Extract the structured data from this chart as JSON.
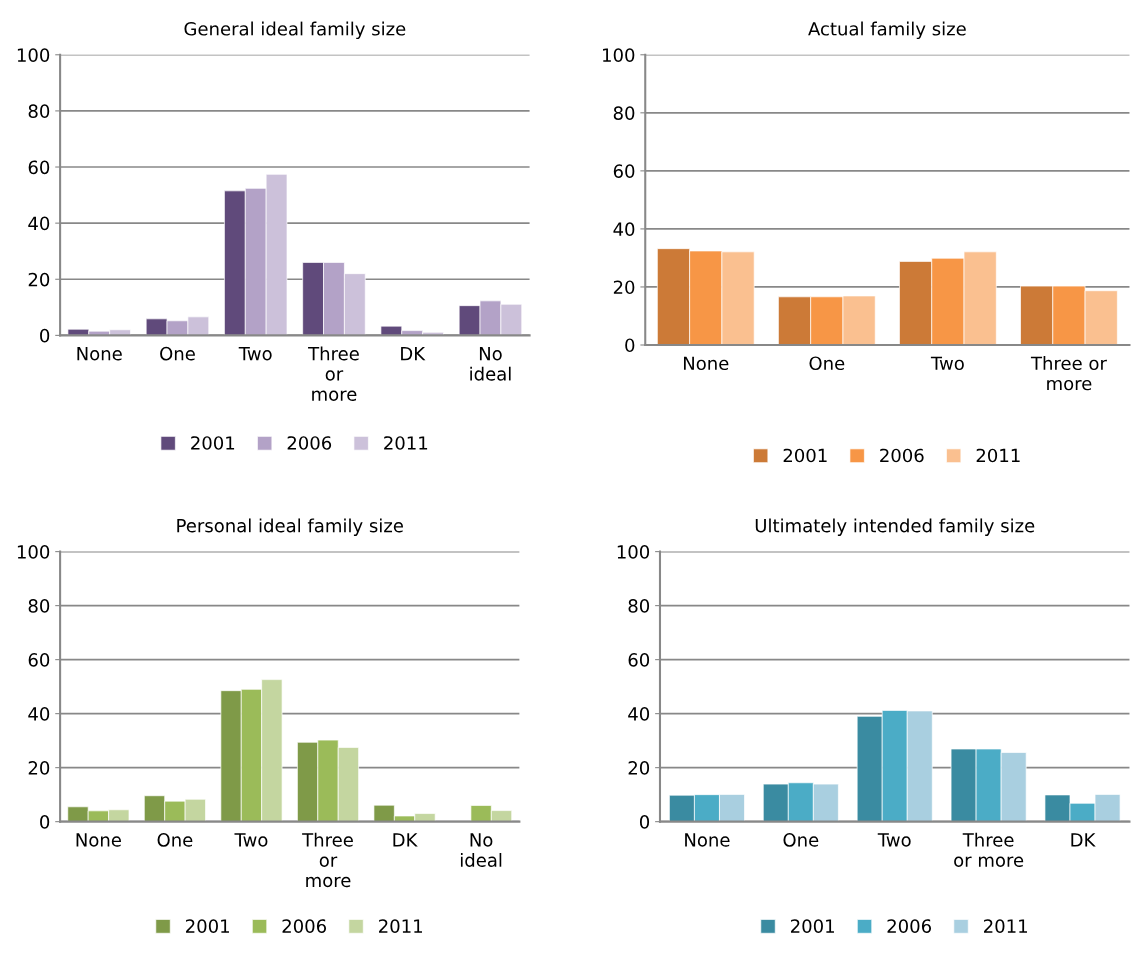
{
  "chart_data": [
    {
      "type": "bar",
      "title": "General ideal family size",
      "categories": [
        "None",
        "One",
        "Two",
        "Three\nor\nmore",
        "DK",
        "No\nideal"
      ],
      "ylim": [
        0,
        100
      ],
      "yticks": [
        0,
        20,
        40,
        60,
        80,
        100
      ],
      "grid": "y",
      "legend": "bottom",
      "series": [
        {
          "name": "2001",
          "color": "#604a7b",
          "values": [
            2.2,
            5.9,
            51.5,
            26,
            3.3,
            10.6
          ]
        },
        {
          "name": "2006",
          "color": "#b3a2c7",
          "values": [
            1.5,
            5.2,
            52.4,
            26,
            1.7,
            12.3
          ]
        },
        {
          "name": "2011",
          "color": "#ccc1da",
          "values": [
            2.0,
            6.6,
            57.4,
            22,
            1.1,
            11.1
          ]
        }
      ]
    },
    {
      "type": "bar",
      "title": "Actual family size",
      "categories": [
        "None",
        "One",
        "Two",
        "Three or\nmore"
      ],
      "ylim": [
        0,
        100
      ],
      "yticks": [
        0,
        20,
        40,
        60,
        80,
        100
      ],
      "grid": "y",
      "legend": "bottom",
      "series": [
        {
          "name": "2001",
          "color": "#cc7a37",
          "values": [
            33.2,
            16.6,
            28.8,
            20.3
          ]
        },
        {
          "name": "2006",
          "color": "#f79646",
          "values": [
            32.4,
            16.6,
            29.9,
            20.3
          ]
        },
        {
          "name": "2011",
          "color": "#fac090",
          "values": [
            32.1,
            16.9,
            32.1,
            18.7
          ]
        }
      ]
    },
    {
      "type": "bar",
      "title": "Personal ideal family size",
      "categories": [
        "None",
        "One",
        "Two",
        "Three\nor\nmore",
        "DK",
        "No\nideal"
      ],
      "ylim": [
        0,
        100
      ],
      "yticks": [
        0,
        20,
        40,
        60,
        80,
        100
      ],
      "grid": "y",
      "legend": "bottom",
      "series": [
        {
          "name": "2001",
          "color": "#7f9a48",
          "values": [
            5.5,
            9.6,
            48.5,
            29.4,
            6.1,
            null
          ]
        },
        {
          "name": "2006",
          "color": "#9bbb59",
          "values": [
            4.0,
            7.6,
            49.0,
            30.2,
            2.1,
            6.0
          ]
        },
        {
          "name": "2011",
          "color": "#c4d6a0",
          "values": [
            4.4,
            8.3,
            52.6,
            27.5,
            3.0,
            4.1
          ]
        }
      ]
    },
    {
      "type": "bar",
      "title": "Ultimately intended family size",
      "categories": [
        "None",
        "One",
        "Two",
        "Three\nor more",
        "DK"
      ],
      "ylim": [
        0,
        100
      ],
      "yticks": [
        0,
        20,
        40,
        60,
        80,
        100
      ],
      "grid": "y",
      "legend": "bottom",
      "series": [
        {
          "name": "2001",
          "color": "#3a8ba1",
          "values": [
            9.8,
            13.9,
            39.0,
            26.9,
            9.9
          ]
        },
        {
          "name": "2006",
          "color": "#4bacc6",
          "values": [
            10.0,
            14.4,
            41.2,
            26.9,
            6.8
          ]
        },
        {
          "name": "2011",
          "color": "#a9cfe0",
          "values": [
            10.1,
            13.9,
            41.0,
            25.6,
            10.1
          ]
        }
      ]
    }
  ]
}
